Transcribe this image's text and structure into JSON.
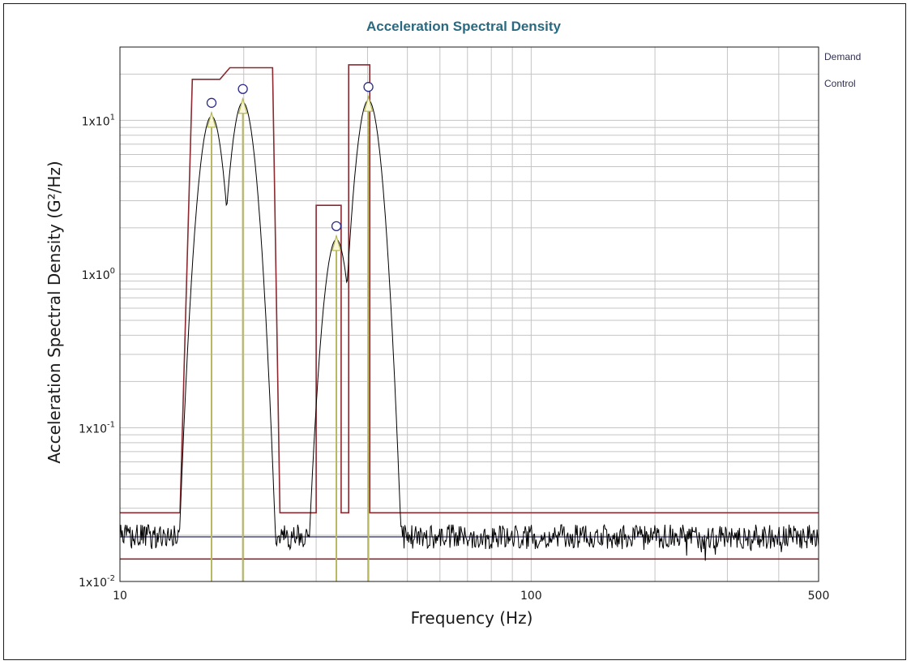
{
  "chart_data": {
    "type": "line",
    "title": "Acceleration Spectral Density",
    "xlabel": "Frequency (Hz)",
    "ylabel": "Acceleration Spectral Density (G²/Hz)",
    "x_scale": "log",
    "y_scale": "log",
    "xlim": [
      10,
      500
    ],
    "ylim": [
      0.01,
      30
    ],
    "grid": true,
    "legend_position": "right",
    "x_tick_labels": [
      {
        "value": 10,
        "label": "10"
      },
      {
        "value": 100,
        "label": "100"
      },
      {
        "value": 500,
        "label": "500"
      }
    ],
    "y_tick_labels": [
      {
        "value": 10,
        "base": "1x10",
        "exp": "1"
      },
      {
        "value": 1,
        "base": "1x10",
        "exp": "0"
      },
      {
        "value": 0.1,
        "base": "1x10",
        "exp": "-1"
      },
      {
        "value": 0.01,
        "base": "1x10",
        "exp": "-2"
      }
    ],
    "legend": [
      "Demand",
      "Control"
    ],
    "colors": {
      "abort_limit": "#8a2a30",
      "demand": "#2a2a6a",
      "control": "#000000",
      "tone_marker": "#b8b860",
      "title": "#2a6a80"
    },
    "abort_limit_upper": [
      [
        10,
        0.028
      ],
      [
        14,
        0.028
      ],
      [
        15,
        18.5
      ],
      [
        17.5,
        18.5
      ],
      [
        18.5,
        22
      ],
      [
        23.5,
        22
      ],
      [
        24.5,
        0.028
      ],
      [
        30,
        0.028
      ],
      [
        30,
        2.8
      ],
      [
        34.5,
        2.8
      ],
      [
        34.5,
        0.028
      ],
      [
        36,
        0.028
      ],
      [
        36,
        23
      ],
      [
        40.5,
        23
      ],
      [
        40.5,
        0.028
      ],
      [
        500,
        0.028
      ]
    ],
    "abort_limit_lower": 0.014,
    "background_demand": 0.0195,
    "sine_tones": [
      {
        "freq": 16.7,
        "level": 13
      },
      {
        "freq": 19.9,
        "level": 16
      },
      {
        "freq": 33.6,
        "level": 2.05
      },
      {
        "freq": 40.2,
        "level": 16.5
      }
    ]
  }
}
